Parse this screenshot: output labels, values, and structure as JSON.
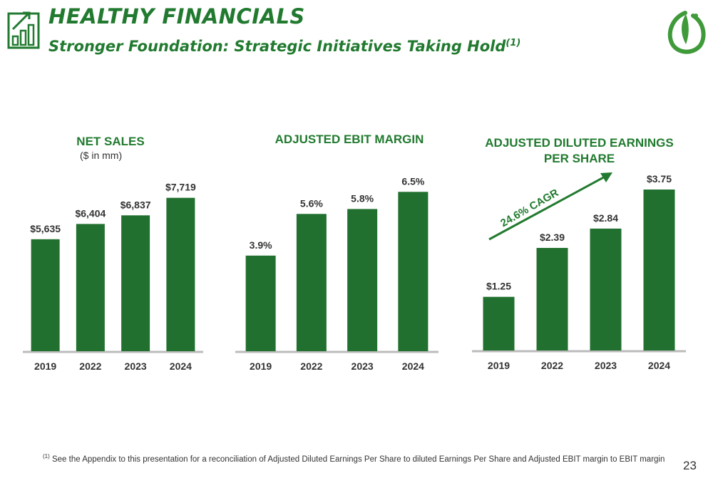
{
  "header": {
    "title": "HEALTHY FINANCIALS",
    "subtitle": "Stronger Foundation: Strategic Initiatives Taking Hold",
    "subtitle_footnote_mark": "(1)",
    "icon": "bar-chart-growth-icon",
    "logo": "leaf-logo-icon"
  },
  "colors": {
    "accent": "#217a2f",
    "bar": "#21702f",
    "axis": "#bbbbbb",
    "text": "#333333"
  },
  "chart_data": [
    {
      "type": "bar",
      "title": "NET SALES",
      "subtitle": "($ in mm)",
      "categories": [
        "2019",
        "2022",
        "2023",
        "2024"
      ],
      "values": [
        5635,
        6404,
        6837,
        7719
      ],
      "labels": [
        "$5,635",
        "$6,404",
        "$6,837",
        "$7,719"
      ],
      "ylim": [
        0,
        9500
      ]
    },
    {
      "type": "bar",
      "title": "ADJUSTED EBIT MARGIN",
      "categories": [
        "2019",
        "2022",
        "2023",
        "2024"
      ],
      "values": [
        3.9,
        5.6,
        5.8,
        6.5
      ],
      "labels": [
        "3.9%",
        "5.6%",
        "5.8%",
        "6.5%"
      ],
      "ylim": [
        0,
        7.7
      ]
    },
    {
      "type": "bar",
      "title": "ADJUSTED DILUTED EARNINGS PER SHARE",
      "categories": [
        "2019",
        "2022",
        "2023",
        "2024"
      ],
      "values": [
        1.25,
        2.39,
        2.84,
        3.75
      ],
      "labels": [
        "$1.25",
        "$2.39",
        "$2.84",
        "$3.75"
      ],
      "ylim": [
        0,
        3.9
      ],
      "annotation": "24.6% CAGR"
    }
  ],
  "footnote": {
    "mark": "(1)",
    "text": "See the Appendix to this presentation for a reconciliation of Adjusted Diluted Earnings Per Share to diluted Earnings Per Share and Adjusted EBIT margin to EBIT margin"
  },
  "page_number": "23"
}
